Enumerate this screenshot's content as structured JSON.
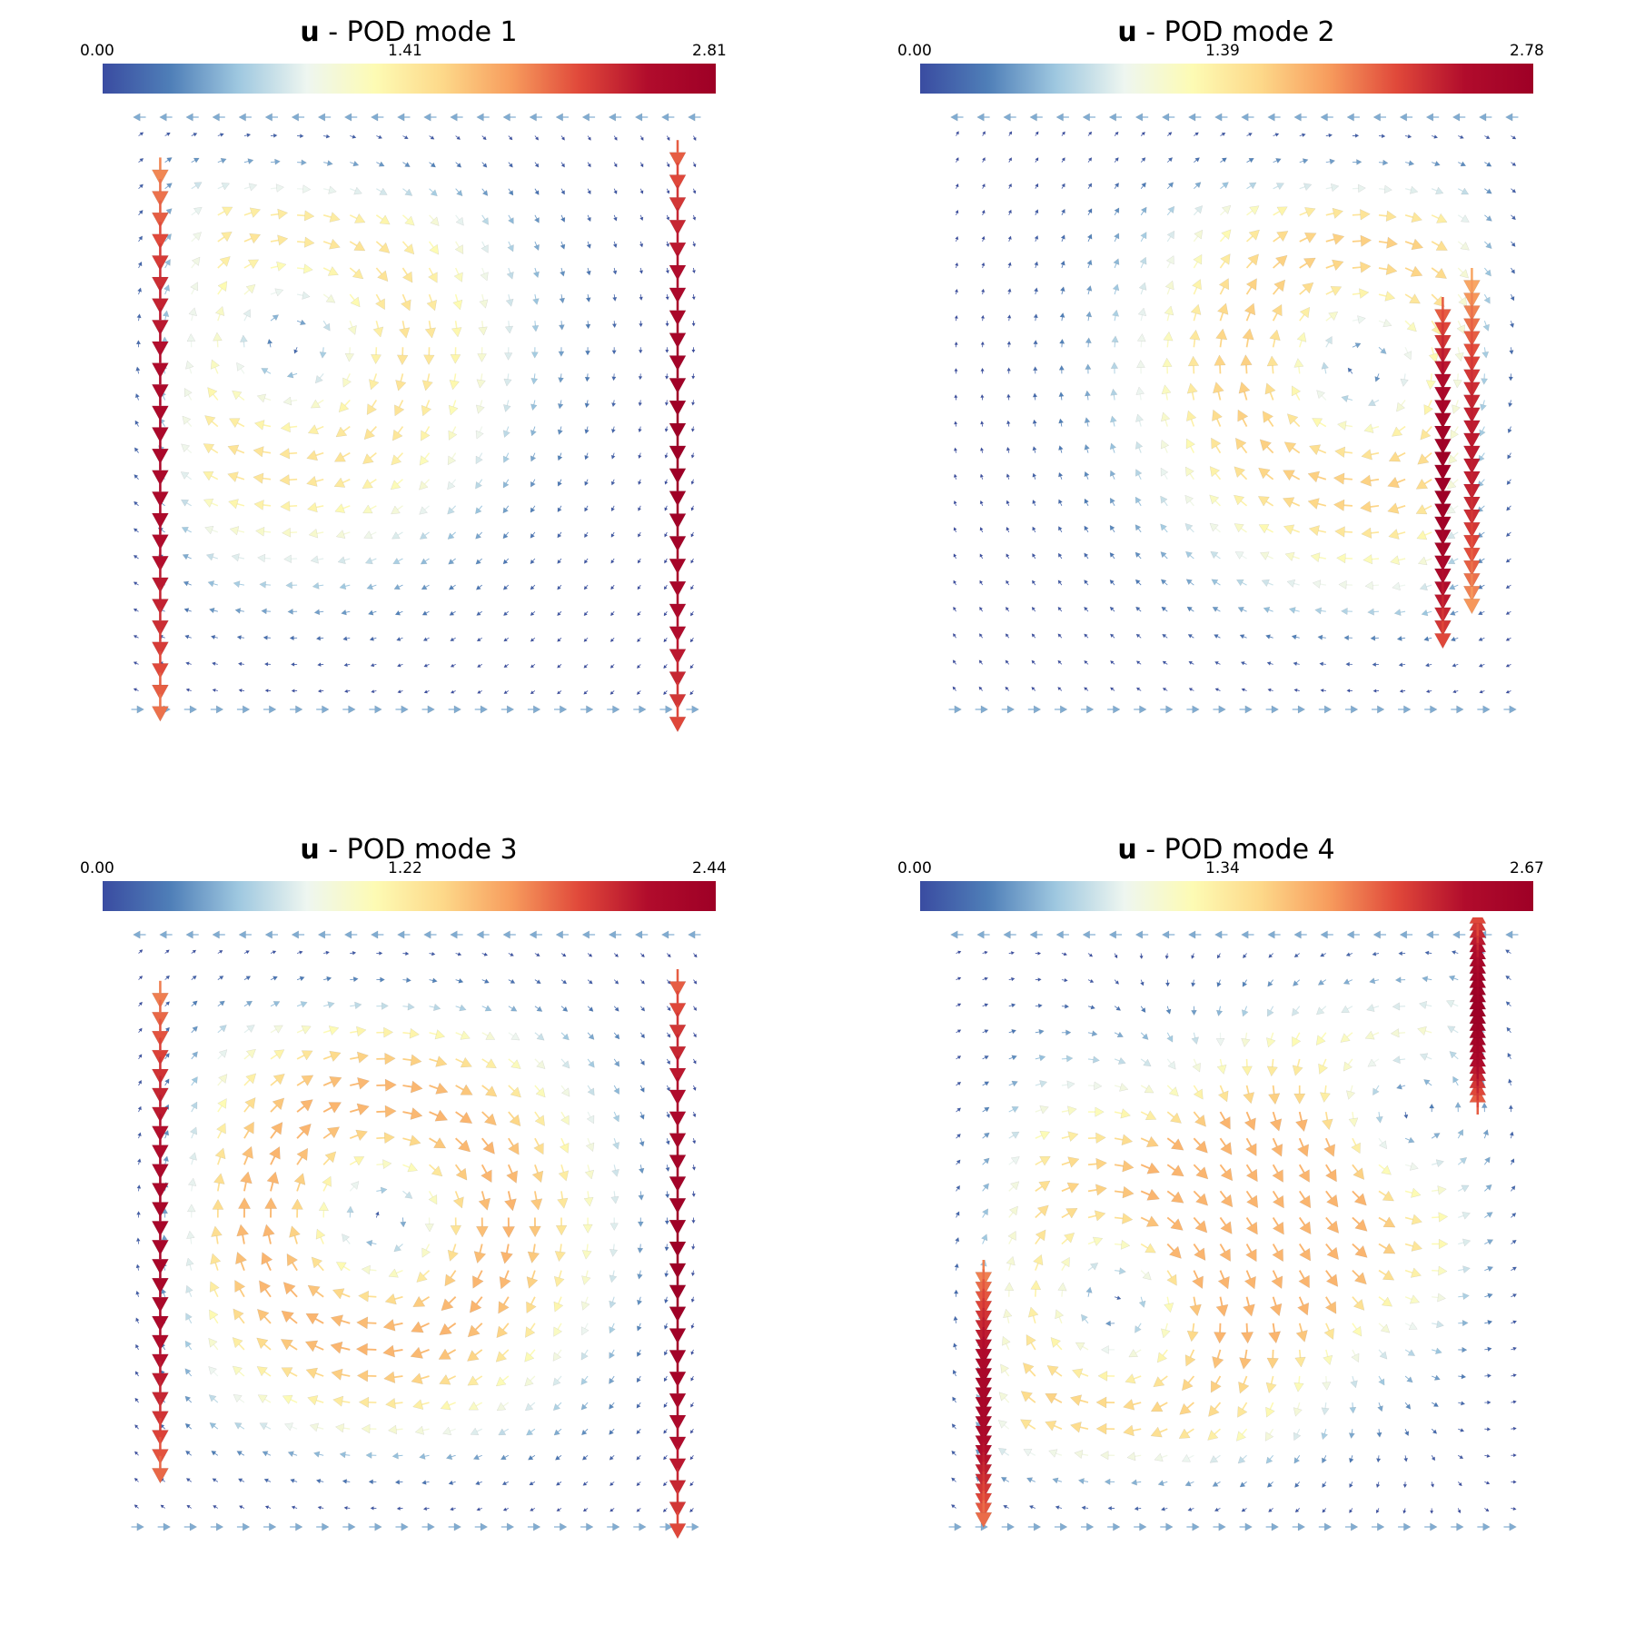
{
  "colormap": [
    "#3a4ca1",
    "#4f7fb8",
    "#9fc8e0",
    "#eef6f0",
    "#fdfbb4",
    "#fdd889",
    "#f79c5d",
    "#e0483a",
    "#b10c2c",
    "#9e0026"
  ],
  "chart_data": [
    {
      "type": "vector-field",
      "title_bold": "u",
      "title_rest": " - POD mode 1",
      "colorbar": {
        "min": "0.00",
        "mid": "1.41",
        "max": "2.81",
        "range": [
          0,
          2.81
        ]
      },
      "vortices": [
        {
          "cx": 0.28,
          "cy": 0.38,
          "strength": 1.0,
          "dir": 1
        }
      ],
      "jets": [
        {
          "x": 0.06,
          "y0": 0.06,
          "y1": 1.02,
          "dir": 1,
          "mag": 2.6
        },
        {
          "x": 0.95,
          "y0": 0.03,
          "y1": 1.04,
          "dir": 1,
          "mag": 2.81
        }
      ],
      "note_mag": 2.81
    },
    {
      "type": "vector-field",
      "title_bold": "u",
      "title_rest": " - POD mode 2",
      "colorbar": {
        "min": "0.00",
        "mid": "1.39",
        "max": "2.78",
        "range": [
          0,
          2.78
        ]
      },
      "vortices": [
        {
          "cx": 0.72,
          "cy": 0.42,
          "strength": 1.1,
          "dir": 1
        }
      ],
      "jets": [
        {
          "x": 0.86,
          "y0": 0.3,
          "y1": 0.88,
          "dir": 1,
          "mag": 2.78
        },
        {
          "x": 0.91,
          "y0": 0.25,
          "y1": 0.82,
          "dir": 1,
          "mag": 2.4
        }
      ],
      "note_mag": 2.78
    },
    {
      "type": "vector-field",
      "title_bold": "u",
      "title_rest": " - POD mode 3",
      "colorbar": {
        "min": "0.00",
        "mid": "1.22",
        "max": "2.44",
        "range": [
          0,
          2.44
        ]
      },
      "vortices": [
        {
          "cx": 0.44,
          "cy": 0.48,
          "strength": 1.2,
          "dir": 1
        }
      ],
      "jets": [
        {
          "x": 0.06,
          "y0": 0.07,
          "y1": 0.92,
          "dir": 1,
          "mag": 2.3
        },
        {
          "x": 0.95,
          "y0": 0.05,
          "y1": 1.02,
          "dir": 1,
          "mag": 2.44
        }
      ],
      "note_mag": 2.44
    },
    {
      "type": "vector-field",
      "title_bold": "u",
      "title_rest": " - POD mode 4",
      "colorbar": {
        "min": "0.00",
        "mid": "1.34",
        "max": "2.67",
        "range": [
          0,
          2.67
        ]
      },
      "vortices": [
        {
          "cx": 0.3,
          "cy": 0.62,
          "strength": 1.1,
          "dir": 1
        },
        {
          "cx": 0.8,
          "cy": 0.3,
          "strength": 0.9,
          "dir": -1
        }
      ],
      "jets": [
        {
          "x": 0.07,
          "y0": 0.55,
          "y1": 0.98,
          "dir": 1,
          "mag": 2.5
        },
        {
          "x": 0.92,
          "y0": 0.3,
          "y1": -0.02,
          "dir": -1,
          "mag": 2.67
        }
      ],
      "note_mag": 2.67
    }
  ]
}
